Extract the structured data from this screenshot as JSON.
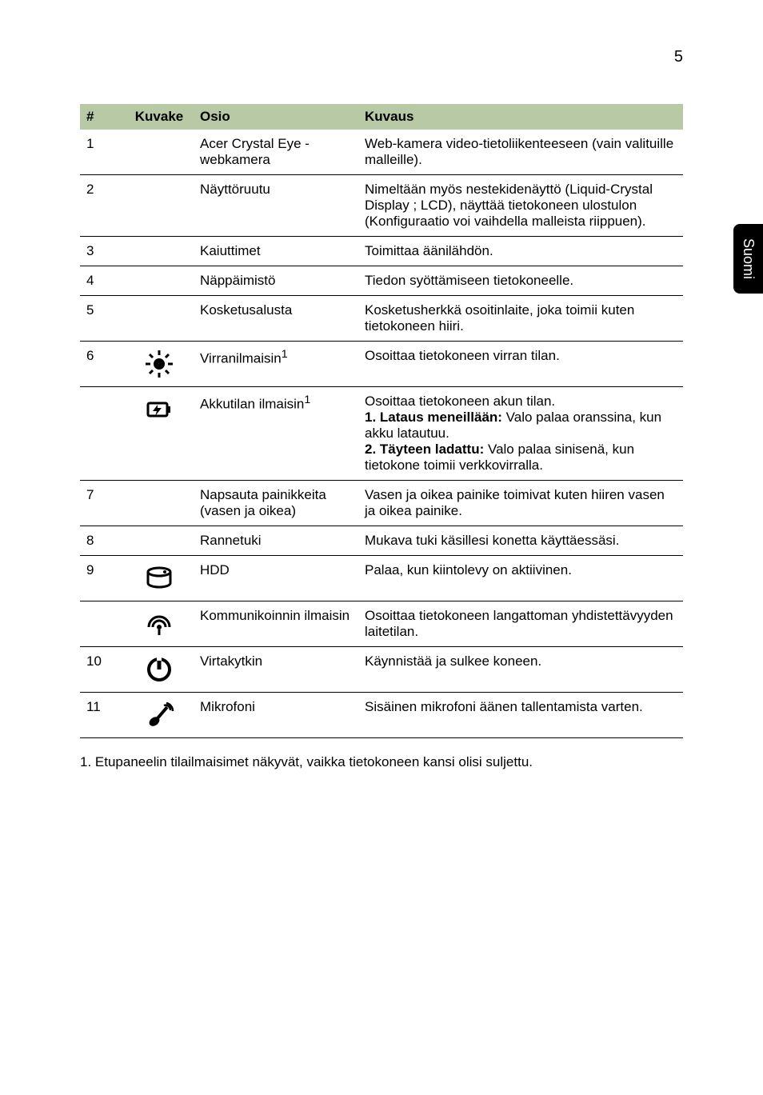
{
  "page_number": "5",
  "side_tab": "Suomi",
  "table": {
    "headers": [
      "#",
      "Kuvake",
      "Osio",
      "Kuvaus"
    ],
    "rows": [
      {
        "num": "1",
        "icon": null,
        "osio": "Acer Crystal Eye - webkamera",
        "kuvaus": "Web-kamera video-tietoliikenteeseen (vain valituille malleille).",
        "border": true
      },
      {
        "num": "2",
        "icon": null,
        "osio": "Näyttöruutu",
        "kuvaus": "Nimeltään myös nestekidenäyttö (Liquid-Crystal Display ; LCD), näyttää tietokoneen ulostulon (Konfiguraatio voi vaihdella malleista riippuen).",
        "border": true
      },
      {
        "num": "3",
        "icon": null,
        "osio": "Kaiuttimet",
        "kuvaus": "Toimittaa äänilähdön.",
        "border": true
      },
      {
        "num": "4",
        "icon": null,
        "osio": "Näppäimistö",
        "kuvaus": "Tiedon syöttämiseen tietokoneelle.",
        "border": true
      },
      {
        "num": "5",
        "icon": null,
        "osio": "Kosketusalusta",
        "kuvaus": "Kosketusherkkä osoitinlaite, joka toimii kuten tietokoneen hiiri.",
        "border": true
      },
      {
        "num": "6",
        "icon": "light",
        "osio_html": "Virranilmaisin<sup>1</sup>",
        "kuvaus": "Osoittaa tietokoneen virran tilan.",
        "border": true
      },
      {
        "num": "",
        "icon": "battery",
        "osio_html": "Akkutilan ilmaisin<sup>1</sup>",
        "kuvaus_html": "Osoittaa tietokoneen akun tilan.<br><b>1. Lataus meneillään:</b> Valo palaa oranssina, kun akku latautuu.<br><b>2. Täyteen ladattu:</b> Valo palaa sinisenä, kun tietokone toimii verkkovirralla.",
        "border": true
      },
      {
        "num": "7",
        "icon": null,
        "osio": "Napsauta painikkeita (vasen ja oikea)",
        "kuvaus": "Vasen ja oikea painike toimivat kuten hiiren vasen ja oikea painike.",
        "border": true
      },
      {
        "num": "8",
        "icon": null,
        "osio": "Rannetuki",
        "kuvaus": "Mukava tuki käsillesi konetta käyttäessäsi.",
        "border": true
      },
      {
        "num": "9",
        "icon": "hdd",
        "osio": "HDD",
        "kuvaus": "Palaa, kun kiintolevy on aktiivinen.",
        "border": true
      },
      {
        "num": "",
        "icon": "wireless",
        "osio": "Kommunikoinnin ilmaisin",
        "kuvaus": "Osoittaa tietokoneen langattoman yhdistettävyyden laitetilan.",
        "border": true
      },
      {
        "num": "10",
        "icon": "power",
        "osio": "Virtakytkin",
        "kuvaus": "Käynnistää ja sulkee koneen.",
        "border": true
      },
      {
        "num": "11",
        "icon": "mic",
        "osio": "Mikrofoni",
        "kuvaus": "Sisäinen mikrofoni äänen tallentamista varten.",
        "border": true
      }
    ]
  },
  "footnote": "1. Etupaneelin tilailmaisimet näkyvät, vaikka tietokoneen kansi olisi suljettu.",
  "colors": {
    "header_bg": "#b7c9a5",
    "text": "#000000",
    "bg": "#ffffff",
    "tab_bg": "#000000",
    "tab_text": "#ffffff"
  }
}
